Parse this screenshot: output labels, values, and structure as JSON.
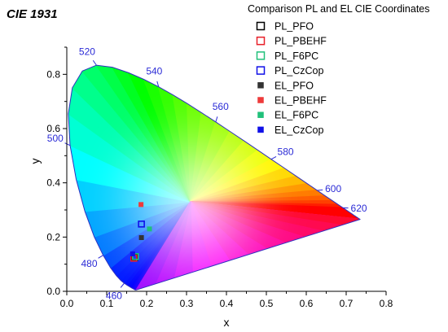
{
  "chart_data": {
    "type": "scatter",
    "title": "CIE 1931",
    "legend_title": "Comparison PL and EL CIE Coordinates",
    "legend_position": "top-right",
    "xlabel": "x",
    "ylabel": "y",
    "xlim": [
      0.0,
      0.8
    ],
    "ylim": [
      0.0,
      0.9
    ],
    "x_ticks": [
      "0.0",
      "0.1",
      "0.2",
      "0.3",
      "0.4",
      "0.5",
      "0.6",
      "0.7",
      "0.8"
    ],
    "y_ticks": [
      "0.0",
      "0.2",
      "0.4",
      "0.6",
      "0.8"
    ],
    "grid": false,
    "wavelength_labels": [
      {
        "text": "460",
        "x": 0.144,
        "y": 0.03
      },
      {
        "text": "480",
        "x": 0.091,
        "y": 0.133
      },
      {
        "text": "500",
        "x": 0.008,
        "y": 0.538
      },
      {
        "text": "520",
        "x": 0.074,
        "y": 0.834
      },
      {
        "text": "540",
        "x": 0.23,
        "y": 0.754
      },
      {
        "text": "560",
        "x": 0.373,
        "y": 0.624
      },
      {
        "text": "580",
        "x": 0.512,
        "y": 0.487
      },
      {
        "text": "600",
        "x": 0.627,
        "y": 0.372
      },
      {
        "text": "620",
        "x": 0.691,
        "y": 0.308
      }
    ],
    "series": [
      {
        "name": "PL_PFO",
        "marker": "open-square",
        "color": "#000000",
        "x": [
          0.17
        ],
        "y": [
          0.125
        ]
      },
      {
        "name": "PL_PBEHF",
        "marker": "open-square",
        "color": "#e8202a",
        "x": [
          0.168
        ],
        "y": [
          0.122
        ]
      },
      {
        "name": "PL_F6PC",
        "marker": "open-square",
        "color": "#20c07a",
        "x": [
          0.172
        ],
        "y": [
          0.128
        ]
      },
      {
        "name": "PL_CzCop",
        "marker": "open-square",
        "color": "#1010e8",
        "x": [
          0.187
        ],
        "y": [
          0.248
        ]
      },
      {
        "name": "EL_PFO",
        "marker": "filled-square",
        "color": "#333333",
        "x": [
          0.187
        ],
        "y": [
          0.198
        ]
      },
      {
        "name": "EL_PBEHF",
        "marker": "filled-square",
        "color": "#ee3a3a",
        "x": [
          0.186
        ],
        "y": [
          0.32
        ]
      },
      {
        "name": "EL_F6PC",
        "marker": "filled-square",
        "color": "#20c07a",
        "x": [
          0.207
        ],
        "y": [
          0.23
        ]
      },
      {
        "name": "EL_CzCop",
        "marker": "filled-square",
        "color": "#1010e8",
        "x": [
          0.165
        ],
        "y": [
          0.138
        ]
      }
    ]
  }
}
